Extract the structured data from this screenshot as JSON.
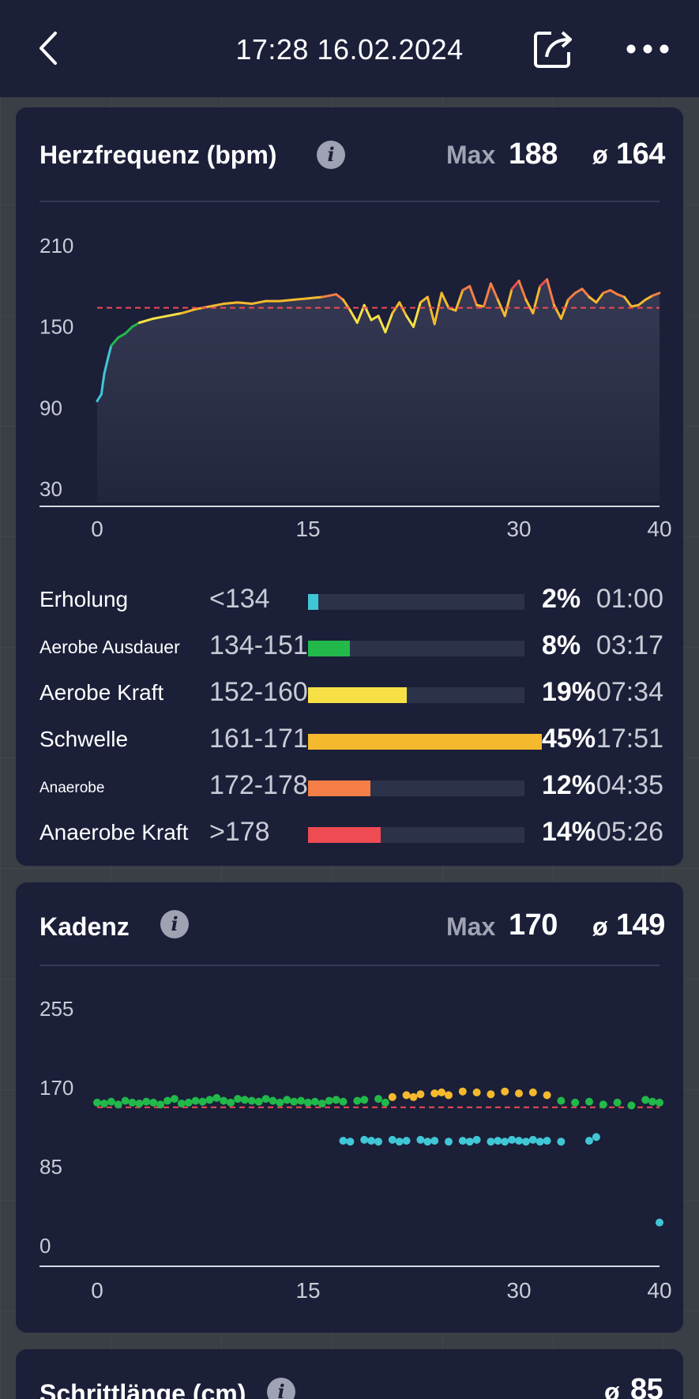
{
  "header": {
    "title": "17:28 16.02.2024",
    "back_icon": "chevron-left-icon",
    "share_icon": "share-icon",
    "more_icon": "more-horizontal-icon"
  },
  "heart_rate": {
    "title": "Herzfrequenz (bpm)",
    "max_label": "Max",
    "max_value": "188",
    "avg_label": "ø",
    "avg_value": "164",
    "zones": [
      {
        "name": "Erholung",
        "range": "<134",
        "percent": "2%",
        "time": "01:00",
        "fraction": 0.02,
        "color": "#40c7d6",
        "name_size": "small"
      },
      {
        "name": "Aerobe Ausdauer",
        "range": "134-151",
        "percent": "8%",
        "time": "03:17",
        "fraction": 0.08,
        "color": "#22b84a",
        "name_size": "smaller"
      },
      {
        "name": "Aerobe Kraft",
        "range": "152-160",
        "percent": "19%",
        "time": "07:34",
        "fraction": 0.19,
        "color": "#f7e046",
        "name_size": "normal"
      },
      {
        "name": "Schwelle",
        "range": "161-171",
        "percent": "45%",
        "time": "17:51",
        "fraction": 0.45,
        "color": "#f5b92e",
        "name_size": "normal"
      },
      {
        "name": "Anaerobe",
        "range": "172-178",
        "percent": "12%",
        "time": "04:35",
        "fraction": 0.12,
        "color": "#f47e45",
        "name_size": "tiny"
      },
      {
        "name": "Anaerobe Kraft",
        "range": ">178",
        "percent": "14%",
        "time": "05:26",
        "fraction": 0.14,
        "color": "#ef4b53",
        "name_size": "normal"
      }
    ]
  },
  "cadence": {
    "title": "Kadenz",
    "max_label": "Max",
    "max_value": "170",
    "avg_label": "ø",
    "avg_value": "149"
  },
  "stride": {
    "title": "Schrittlänge (cm)",
    "avg_label": "ø",
    "avg_value": "85"
  },
  "chart_data": [
    {
      "type": "line",
      "x_ticks": [
        "0",
        "15",
        "30",
        "40"
      ],
      "y_ticks": [
        "210",
        "150",
        "90",
        "30"
      ],
      "xlim": [
        0,
        40
      ],
      "ylim": [
        20,
        210
      ],
      "average_line": 164,
      "series": [
        {
          "x": [
            0,
            0.3,
            0.5,
            0.8,
            1,
            1.5,
            2,
            2.5,
            3,
            4,
            5,
            6,
            7,
            8,
            9,
            10,
            11,
            12,
            13,
            14,
            15,
            16,
            16.5,
            17,
            17.5,
            18,
            18.5,
            19,
            19.5,
            20,
            20.5,
            21,
            21.5,
            22,
            22.5,
            23,
            23.5,
            24,
            24.5,
            25,
            25.5,
            26,
            26.5,
            27,
            27.5,
            28,
            28.5,
            29,
            29.5,
            30,
            30.5,
            31,
            31.5,
            32,
            32.5,
            33,
            33.5,
            34,
            34.5,
            35,
            35.5,
            36,
            36.5,
            37,
            37.5,
            38,
            38.5,
            39,
            39.5,
            40
          ],
          "values": [
            95,
            100,
            115,
            128,
            136,
            142,
            145,
            150,
            153,
            156,
            158,
            160,
            163,
            165,
            167,
            168,
            167,
            169,
            169,
            170,
            171,
            172,
            173,
            174,
            170,
            162,
            153,
            166,
            155,
            158,
            146,
            160,
            168,
            158,
            150,
            168,
            172,
            152,
            175,
            164,
            162,
            177,
            180,
            166,
            165,
            182,
            170,
            158,
            178,
            184,
            170,
            160,
            180,
            185,
            166,
            156,
            170,
            175,
            178,
            172,
            168,
            175,
            177,
            174,
            172,
            165,
            166,
            170,
            173,
            175
          ]
        }
      ]
    },
    {
      "type": "scatter",
      "x_ticks": [
        "0",
        "15",
        "30",
        "40"
      ],
      "y_ticks": [
        "255",
        "170",
        "85",
        "0"
      ],
      "xlim": [
        0,
        40
      ],
      "ylim": [
        0,
        255
      ],
      "average_line": 149,
      "series": [
        {
          "name": "main",
          "x": [
            0,
            0.5,
            1,
            1.5,
            2,
            2.5,
            3,
            3.5,
            4,
            4.5,
            5,
            5.5,
            6,
            6.5,
            7,
            7.5,
            8,
            8.5,
            9,
            9.5,
            10,
            10.5,
            11,
            11.5,
            12,
            12.5,
            13,
            13.5,
            14,
            14.5,
            15,
            15.5,
            16,
            16.5,
            17,
            17.5,
            18.5,
            19,
            20,
            20.5,
            21,
            22,
            22.5,
            23,
            24,
            24.5,
            25,
            26,
            27,
            28,
            29,
            30,
            31,
            32,
            33,
            34,
            35,
            36,
            37,
            38,
            39,
            39.5,
            40
          ],
          "values": [
            154,
            153,
            155,
            152,
            156,
            154,
            153,
            155,
            154,
            152,
            156,
            158,
            153,
            154,
            156,
            155,
            157,
            159,
            156,
            154,
            158,
            157,
            156,
            155,
            158,
            156,
            154,
            157,
            155,
            156,
            154,
            155,
            153,
            156,
            157,
            155,
            156,
            157,
            158,
            154,
            160,
            162,
            160,
            163,
            164,
            165,
            162,
            166,
            165,
            163,
            166,
            164,
            165,
            162,
            156,
            154,
            155,
            152,
            154,
            151,
            157,
            155,
            154
          ]
        },
        {
          "name": "low",
          "x": [
            17.5,
            18,
            19,
            19.5,
            20,
            21,
            21.5,
            22,
            23,
            23.5,
            24,
            25,
            26,
            26.5,
            27,
            28,
            28.5,
            29,
            29.5,
            30,
            30.5,
            31,
            31.5,
            32,
            33,
            35,
            35.5,
            40
          ],
          "values": [
            113,
            112,
            114,
            113,
            112,
            114,
            112,
            113,
            114,
            112,
            113,
            112,
            113,
            112,
            114,
            112,
            113,
            112,
            114,
            113,
            112,
            114,
            112,
            113,
            112,
            113,
            117,
            25
          ]
        }
      ]
    }
  ]
}
